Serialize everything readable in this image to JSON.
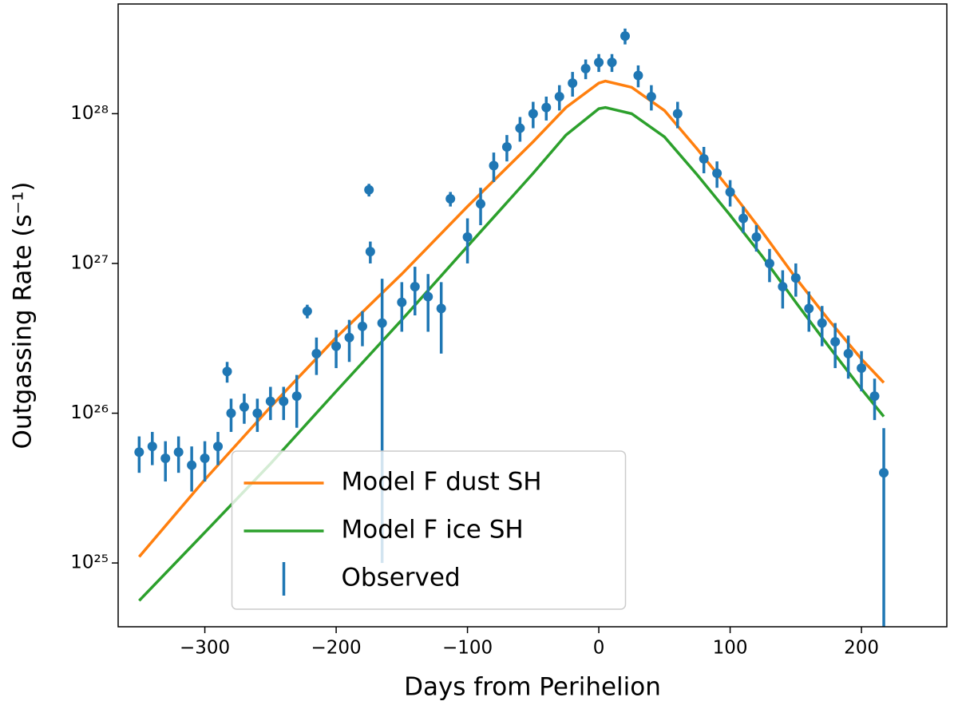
{
  "chart_data": {
    "type": "line",
    "xlabel": "Days from Perihelion",
    "ylabel": "Outgassing Rate (s⁻¹)",
    "xlim": [
      -366,
      265
    ],
    "ylim": [
      3.75e+24,
      5.4e+28
    ],
    "yscale": "log",
    "xticks": [
      {
        "value": -300,
        "label": "−300"
      },
      {
        "value": -200,
        "label": "−200"
      },
      {
        "value": -100,
        "label": "−100"
      },
      {
        "value": 0,
        "label": "0"
      },
      {
        "value": 100,
        "label": "100"
      },
      {
        "value": 200,
        "label": "200"
      }
    ],
    "yticks": [
      {
        "value": 1e+25,
        "label": "10²⁵"
      },
      {
        "value": 1e+26,
        "label": "10²⁶"
      },
      {
        "value": 1e+27,
        "label": "10²⁷"
      },
      {
        "value": 1e+28,
        "label": "10²⁸"
      }
    ],
    "legend": "lower center",
    "series": [
      {
        "name": "Model F dust SH",
        "color": "#ff7f0e",
        "kind": "line",
        "x": [
          -350,
          -300,
          -250,
          -200,
          -150,
          -100,
          -50,
          -25,
          0,
          5,
          25,
          50,
          75,
          100,
          125,
          150,
          175,
          200,
          217
        ],
        "values": [
          1.1e+25,
          3.6e+25,
          1.1e+26,
          3.2e+26,
          8.5e+26,
          2.4e+27,
          6.5e+27,
          1.1e+28,
          1.6e+28,
          1.65e+28,
          1.5e+28,
          1.05e+28,
          5.8e+27,
          3.1e+27,
          1.6e+27,
          8e+26,
          4.2e+26,
          2.3e+26,
          1.6e+26
        ]
      },
      {
        "name": "Model F ice SH",
        "color": "#2ca02c",
        "kind": "line",
        "x": [
          -350,
          -300,
          -250,
          -200,
          -150,
          -100,
          -50,
          -25,
          0,
          5,
          25,
          50,
          75,
          100,
          125,
          150,
          175,
          200,
          217
        ],
        "values": [
          5.6e+24,
          1.6e+25,
          4.6e+25,
          1.4e+26,
          4.2e+26,
          1.3e+27,
          4e+27,
          7.2e+27,
          1.08e+28,
          1.1e+28,
          1e+28,
          7e+27,
          3.9e+27,
          2.1e+27,
          1.1e+27,
          5.5e+26,
          2.8e+26,
          1.45e+26,
          9.5e+25
        ]
      },
      {
        "name": "Observed",
        "color": "#1f77b4",
        "kind": "errorbar",
        "x": [
          -350,
          -340,
          -330,
          -320,
          -310,
          -300,
          -290,
          -283,
          -280,
          -270,
          -260,
          -250,
          -240,
          -230,
          -222,
          -215,
          -200,
          -190,
          -180,
          -175,
          -174,
          -165,
          -150,
          -140,
          -130,
          -120,
          -113,
          -100,
          -90,
          -80,
          -70,
          -60,
          -50,
          -40,
          -30,
          -20,
          -10,
          0,
          10,
          20,
          30,
          40,
          60,
          80,
          90,
          100,
          110,
          120,
          130,
          140,
          150,
          160,
          170,
          180,
          190,
          200,
          210,
          217
        ],
        "values": [
          5.5e+25,
          6e+25,
          5e+25,
          5.5e+25,
          4.5e+25,
          5e+25,
          6e+25,
          1.9e+26,
          1e+26,
          1.1e+26,
          1e+26,
          1.2e+26,
          1.2e+26,
          1.3e+26,
          4.8e+26,
          2.5e+26,
          2.8e+26,
          3.2e+26,
          3.8e+26,
          3.1e+27,
          1.2e+27,
          4e+26,
          5.5e+26,
          7e+26,
          6e+26,
          5e+26,
          2.7e+27,
          1.5e+27,
          2.5e+27,
          4.5e+27,
          6e+27,
          8e+27,
          1e+28,
          1.1e+28,
          1.3e+28,
          1.6e+28,
          2e+28,
          2.2e+28,
          2.2e+28,
          3.3e+28,
          1.8e+28,
          1.3e+28,
          1e+28,
          5e+27,
          4e+27,
          3e+27,
          2e+27,
          1.5e+27,
          1e+27,
          7e+26,
          8e+26,
          5e+26,
          4e+26,
          3e+26,
          2.5e+26,
          2e+26,
          1.3e+26,
          4e+25
        ],
        "errors": [
          1.5e+25,
          1.5e+25,
          1.5e+25,
          1.5e+25,
          1.5e+25,
          1.5e+25,
          1.5e+25,
          3e+25,
          2.5e+25,
          2.5e+25,
          2.5e+25,
          3e+25,
          3e+25,
          5e+25,
          5e+25,
          7e+25,
          8e+25,
          1e+26,
          1e+26,
          3e+26,
          2e+26,
          3.9e+26,
          2e+26,
          2.5e+26,
          2.5e+26,
          2.5e+26,
          3e+26,
          5e+26,
          7e+26,
          1e+27,
          1.2e+27,
          1.5e+27,
          2e+27,
          2e+27,
          2.5e+27,
          3e+27,
          3e+27,
          3e+27,
          3e+27,
          4e+27,
          3e+27,
          2.5e+27,
          2e+27,
          1e+27,
          8e+26,
          6e+26,
          4e+26,
          3e+26,
          2.5e+26,
          2e+26,
          2e+26,
          1.5e+26,
          1.2e+26,
          1e+26,
          8e+25,
          6e+25,
          4e+25,
          3.95e+25
        ]
      }
    ]
  }
}
